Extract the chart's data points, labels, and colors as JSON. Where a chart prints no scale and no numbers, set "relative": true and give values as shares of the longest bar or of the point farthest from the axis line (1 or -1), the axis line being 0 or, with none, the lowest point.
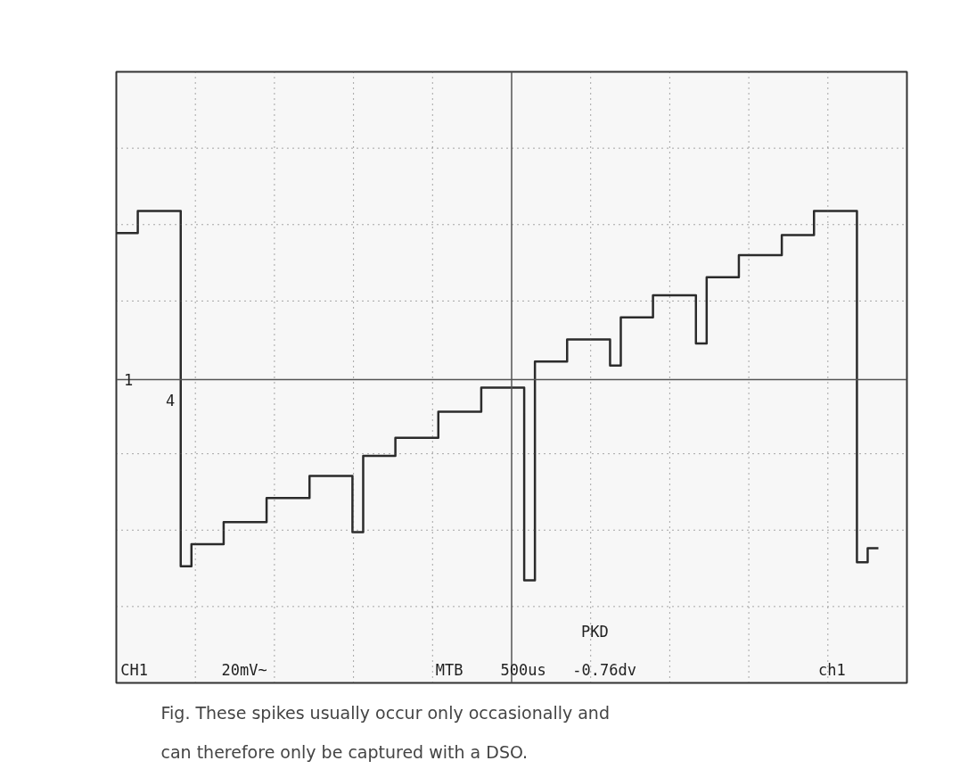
{
  "chart_data": {
    "type": "step",
    "relative": true,
    "grid": true,
    "categories": [
      null,
      null,
      null,
      null,
      null,
      null,
      null,
      null,
      null,
      null,
      null,
      null,
      null,
      null,
      null,
      null,
      null,
      null,
      null,
      null,
      null,
      null,
      null,
      null,
      null,
      null,
      null,
      null,
      null,
      null,
      null,
      null,
      null,
      null,
      null,
      null,
      null,
      null,
      null,
      null,
      null,
      null,
      null,
      null,
      null,
      null,
      null,
      null,
      null,
      null,
      null,
      null,
      null,
      null,
      null,
      null,
      null,
      null,
      null,
      null,
      null,
      null,
      null,
      null,
      null,
      null,
      null,
      null,
      null,
      null,
      null,
      null
    ],
    "series": [
      {
        "color": "#2b2b2b",
        "values": [
          0.73,
          0.73,
          0.84,
          0.84,
          0.84,
          0.84,
          -0.93,
          -0.82,
          -0.82,
          -0.82,
          -0.71,
          -0.71,
          -0.71,
          -0.71,
          -0.59,
          -0.59,
          -0.59,
          -0.59,
          -0.48,
          -0.48,
          -0.48,
          -0.48,
          -0.76,
          -0.38,
          -0.38,
          -0.38,
          -0.29,
          -0.29,
          -0.29,
          -0.29,
          -0.16,
          -0.16,
          -0.16,
          -0.16,
          -0.04,
          -0.04,
          -0.04,
          -0.04,
          -1,
          0.09,
          0.09,
          0.09,
          0.2,
          0.2,
          0.2,
          0.2,
          0.07,
          0.31,
          0.31,
          0.31,
          0.42,
          0.42,
          0.42,
          0.42,
          0.18,
          0.51,
          0.51,
          0.51,
          0.62,
          0.62,
          0.62,
          0.62,
          0.72,
          0.72,
          0.72,
          0.84,
          0.84,
          0.84,
          0.84,
          -0.91,
          -0.84,
          -0.84
        ]
      }
    ],
    "annotations": [
      "1",
      "4",
      "PKD",
      "CH1",
      "20mV~",
      "MTB",
      "500us",
      "-0.76dv",
      "ch1",
      "Fig. These spikes usually occur only occasionally and can therefore only be captured with a DSO."
    ]
  }
}
